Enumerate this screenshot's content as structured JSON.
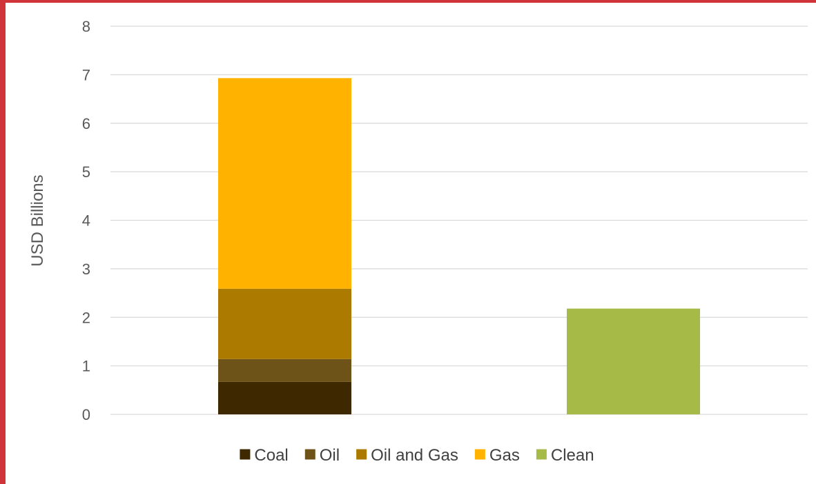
{
  "chart_data": {
    "type": "bar",
    "stacked": true,
    "categories": [
      "",
      ""
    ],
    "ylabel": "USD Billions",
    "ylim": [
      0,
      8
    ],
    "yticks": [
      "0",
      "1",
      "2",
      "3",
      "4",
      "5",
      "6",
      "7",
      "8"
    ],
    "grid": true,
    "legend_position": "bottom",
    "series": [
      {
        "name": "Coal",
        "color": "#3d2800",
        "values": [
          0.67,
          0
        ]
      },
      {
        "name": "Oil",
        "color": "#6e5318",
        "values": [
          0.47,
          0
        ]
      },
      {
        "name": "Oil and Gas",
        "color": "#ad7a00",
        "values": [
          1.45,
          0
        ]
      },
      {
        "name": "Gas",
        "color": "#ffb300",
        "values": [
          4.34,
          0
        ]
      },
      {
        "name": "Clean",
        "color": "#a6ba48",
        "values": [
          0,
          2.18
        ]
      }
    ]
  },
  "colors": {
    "frame": "#d13438",
    "gridline": "#d9d9d9",
    "text": "#595959"
  }
}
